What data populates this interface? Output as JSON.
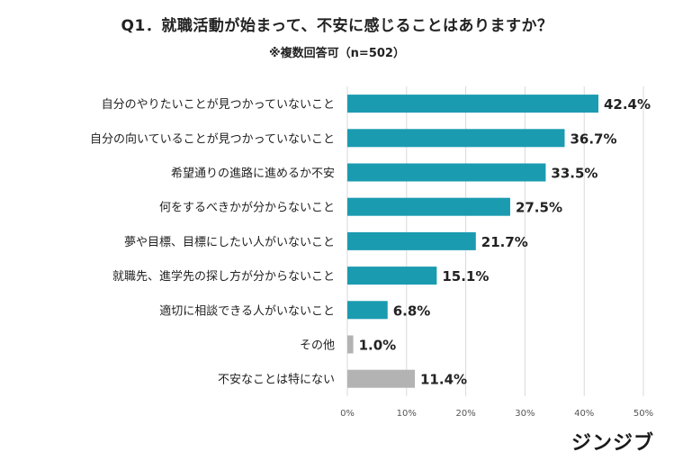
{
  "title": "Q1．就職活動が始まって、不安に感じることはありますか？",
  "subtitle": "※複数回答可（n=502）",
  "brand": "ジンジブ",
  "colors": {
    "primary": "#1a9bb0",
    "other": "#b3b3b3",
    "grid": "#d9d9d9",
    "text": "#222222"
  },
  "chart_data": {
    "type": "bar",
    "orientation": "horizontal",
    "categories": [
      "自分のやりたいことが見つかっていないこと",
      "自分の向いていることが見つかっていないこと",
      "希望通りの進路に進めるか不安",
      "何をするべきかが分からないこと",
      "夢や目標、目標にしたい人がいないこと",
      "就職先、進学先の探し方が分からないこと",
      "適切に相談できる人がいないこと",
      "その他",
      "不安なことは特にない"
    ],
    "values": [
      42.4,
      36.7,
      33.5,
      27.5,
      21.7,
      15.1,
      6.8,
      1.0,
      11.4
    ],
    "value_labels": [
      "42.4%",
      "36.7%",
      "33.5%",
      "27.5%",
      "21.7%",
      "15.1%",
      "6.8%",
      "1.0%",
      "11.4%"
    ],
    "bar_colors": [
      "primary",
      "primary",
      "primary",
      "primary",
      "primary",
      "primary",
      "primary",
      "other",
      "other"
    ],
    "xlim": [
      0,
      50
    ],
    "ticks": [
      0,
      10,
      20,
      30,
      40,
      50
    ],
    "tick_labels": [
      "0%",
      "10%",
      "20%",
      "30%",
      "40%",
      "50%"
    ],
    "grid": true,
    "legend": false
  }
}
